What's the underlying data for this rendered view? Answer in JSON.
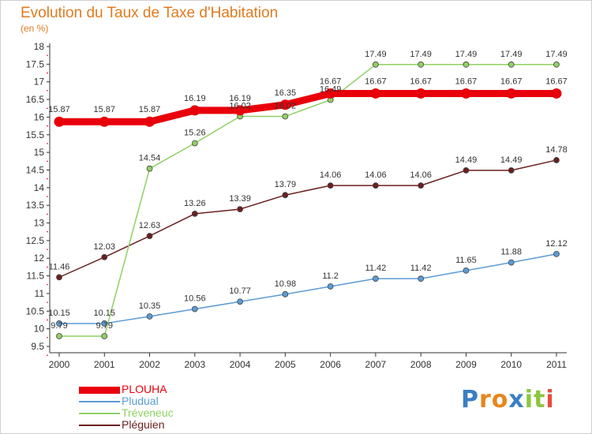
{
  "chart_data": {
    "type": "line",
    "title": "Evolution du Taux de Taxe d'Habitation",
    "ylabel": "(en %)",
    "categories": [
      "2000",
      "2001",
      "2002",
      "2003",
      "2004",
      "2005",
      "2006",
      "2007",
      "2008",
      "2009",
      "2010",
      "2011"
    ],
    "ylim": [
      9.5,
      18
    ],
    "yticks": [
      "9.5",
      "10",
      "10.5",
      "11",
      "11.5",
      "12",
      "12.5",
      "13",
      "13.5",
      "14",
      "14.5",
      "15",
      "15.5",
      "16",
      "16.5",
      "17",
      "17.5",
      "18"
    ],
    "grid": false,
    "legend_position": "bottom-left",
    "series": [
      {
        "name": "PLOUHA",
        "color": "#e8000b",
        "values": [
          15.87,
          15.87,
          15.87,
          16.19,
          16.19,
          16.35,
          16.67,
          16.67,
          16.67,
          16.67,
          16.67,
          16.67
        ],
        "labels": [
          "15.87",
          "15.87",
          "15.87",
          "16.19",
          "16.19",
          "16.35",
          "16.67",
          "16.67",
          "16.67",
          "16.67",
          "16.67",
          "16.67"
        ]
      },
      {
        "name": "Pludual",
        "color": "#5b9bd5",
        "values": [
          10.15,
          10.15,
          10.35,
          10.56,
          10.77,
          10.98,
          11.2,
          11.42,
          11.42,
          11.65,
          11.88,
          12.12
        ],
        "labels": [
          "10.15",
          "10.15",
          "10.35",
          "10.56",
          "10.77",
          "10.98",
          "11.2",
          "11.42",
          "11.42",
          "11.65",
          "11.88",
          "12.12"
        ]
      },
      {
        "name": "Tréveneuc",
        "color": "#8fd163",
        "values": [
          9.79,
          9.79,
          14.54,
          15.26,
          16.02,
          16.02,
          16.49,
          17.49,
          17.49,
          17.49,
          17.49,
          17.49
        ],
        "labels": [
          "9.79",
          "9.79",
          "14.54",
          "15.26",
          "16.02",
          "16.02",
          "16.49",
          "17.49",
          "17.49",
          "17.49",
          "17.49",
          "17.49"
        ]
      },
      {
        "name": "Pléguien",
        "color": "#6b1f1f",
        "values": [
          11.46,
          12.03,
          12.63,
          13.26,
          13.39,
          13.79,
          14.06,
          14.06,
          14.06,
          14.49,
          14.49,
          14.78
        ],
        "labels": [
          "11.46",
          "12.03",
          "12.63",
          "13.26",
          "13.39",
          "13.79",
          "14.06",
          "14.06",
          "14.06",
          "14.49",
          "14.49",
          "14.78"
        ]
      }
    ]
  },
  "logo": {
    "letters": [
      "P",
      "r",
      "o",
      "x",
      "i",
      "t",
      "i"
    ],
    "colors": [
      "#3a7fc4",
      "#e8861c",
      "#e8861c",
      "#3a7fc4",
      "#8cc63f",
      "#8cc63f",
      "#e84c3d"
    ]
  }
}
